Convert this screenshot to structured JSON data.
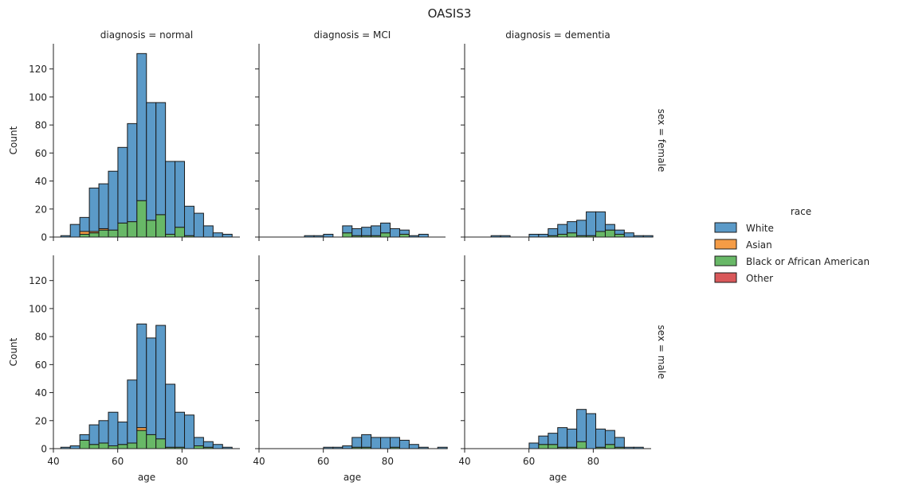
{
  "chart_data": {
    "type": "bar",
    "subtype": "stacked-histogram-facet-grid",
    "title": "OASIS3",
    "xlabel": "age",
    "ylabel": "Count",
    "xlim": [
      40,
      98
    ],
    "ylim": [
      0,
      138
    ],
    "xticks": [
      40,
      60,
      80
    ],
    "yticks": [
      0,
      20,
      40,
      60,
      80,
      100,
      120
    ],
    "bin_width": 2.96,
    "bin_start": 42.3,
    "bins": 19,
    "legend": {
      "title": "race",
      "placement": "right",
      "entries": [
        {
          "name": "White",
          "color": "#5b9ac8"
        },
        {
          "name": "Asian",
          "color": "#f59c46"
        },
        {
          "name": "Black or African American",
          "color": "#68b867"
        },
        {
          "name": "Other",
          "color": "#d9585a"
        }
      ]
    },
    "panels": [
      {
        "row_label": "sex = female",
        "col_label": "diagnosis = normal",
        "totals": [
          1,
          9,
          14,
          35,
          38,
          47,
          64,
          81,
          131,
          96,
          96,
          54,
          54,
          22,
          17,
          8,
          3,
          2,
          0
        ],
        "black": [
          0,
          0,
          2,
          3,
          5,
          5,
          10,
          11,
          26,
          12,
          16,
          2,
          7,
          1,
          0,
          0,
          0,
          0,
          0
        ],
        "asian": [
          0,
          0,
          2,
          1,
          1,
          0,
          0,
          0,
          0,
          0,
          0,
          0,
          0,
          0,
          0,
          0,
          0,
          0,
          0
        ],
        "other": [
          0,
          0,
          0,
          0,
          0,
          0,
          0,
          0,
          0,
          0,
          0,
          0,
          0,
          0,
          0,
          0,
          0,
          0,
          0
        ]
      },
      {
        "row_label": "sex = female",
        "col_label": "diagnosis = MCI",
        "totals": [
          0,
          0,
          0,
          0,
          1,
          1,
          2,
          0,
          8,
          6,
          7,
          8,
          10,
          6,
          5,
          1,
          2,
          0,
          0
        ],
        "black": [
          0,
          0,
          0,
          0,
          0,
          0,
          0,
          0,
          3,
          1,
          1,
          1,
          3,
          0,
          2,
          0,
          0,
          0,
          0
        ],
        "asian": [
          0,
          0,
          0,
          0,
          0,
          0,
          0,
          0,
          0,
          0,
          0,
          0,
          0,
          0,
          0,
          0,
          0,
          0,
          0
        ],
        "other": [
          0,
          0,
          0,
          0,
          0,
          0,
          0,
          0,
          0,
          0,
          0,
          0,
          0,
          0,
          0,
          0,
          0,
          0,
          0
        ]
      },
      {
        "row_label": "sex = female",
        "col_label": "diagnosis = dementia",
        "totals": [
          0,
          0,
          1,
          1,
          0,
          0,
          2,
          2,
          6,
          9,
          11,
          12,
          18,
          18,
          9,
          5,
          3,
          1,
          1
        ],
        "black": [
          0,
          0,
          0,
          0,
          0,
          0,
          0,
          0,
          1,
          2,
          3,
          1,
          1,
          4,
          5,
          2,
          0,
          0,
          0
        ],
        "asian": [
          0,
          0,
          0,
          0,
          0,
          0,
          0,
          0,
          0,
          0,
          0,
          0,
          0,
          0,
          0,
          0,
          0,
          0,
          0
        ],
        "other": [
          0,
          0,
          0,
          0,
          0,
          0,
          0,
          0,
          0,
          0,
          0,
          0,
          0,
          0,
          0,
          0,
          0,
          0,
          0
        ]
      },
      {
        "row_label": "sex = male",
        "col_label": "diagnosis = normal",
        "totals": [
          1,
          2,
          10,
          17,
          20,
          26,
          19,
          49,
          89,
          79,
          88,
          46,
          26,
          24,
          8,
          5,
          3,
          1,
          0
        ],
        "black": [
          0,
          0,
          6,
          3,
          4,
          2,
          3,
          4,
          13,
          10,
          7,
          1,
          1,
          0,
          2,
          1,
          0,
          0,
          0
        ],
        "asian": [
          0,
          0,
          0,
          0,
          0,
          0,
          0,
          0,
          2,
          0,
          0,
          0,
          0,
          0,
          0,
          0,
          0,
          0,
          0
        ],
        "other": [
          0,
          0,
          0,
          0,
          0,
          0,
          0,
          0,
          0,
          0,
          0,
          0,
          0,
          0,
          0,
          0,
          0,
          0,
          0
        ]
      },
      {
        "row_label": "sex = male",
        "col_label": "diagnosis = MCI",
        "totals": [
          0,
          0,
          0,
          0,
          0,
          0,
          1,
          1,
          2,
          8,
          10,
          8,
          8,
          8,
          6,
          3,
          1,
          0,
          1
        ],
        "black": [
          0,
          0,
          0,
          0,
          0,
          0,
          0,
          0,
          0,
          1,
          1,
          0,
          0,
          1,
          0,
          0,
          0,
          0,
          0
        ],
        "asian": [
          0,
          0,
          0,
          0,
          0,
          0,
          0,
          0,
          0,
          0,
          0,
          0,
          0,
          0,
          0,
          0,
          0,
          0,
          0
        ],
        "other": [
          0,
          0,
          0,
          0,
          0,
          0,
          0,
          0,
          0,
          0,
          0,
          0,
          0,
          0,
          0,
          0,
          0,
          0,
          0
        ]
      },
      {
        "row_label": "sex = male",
        "col_label": "diagnosis = dementia",
        "totals": [
          0,
          0,
          0,
          0,
          0,
          0,
          4,
          9,
          11,
          15,
          14,
          28,
          25,
          14,
          13,
          8,
          1,
          1,
          0
        ],
        "black": [
          0,
          0,
          0,
          0,
          0,
          0,
          0,
          3,
          3,
          1,
          1,
          5,
          0,
          1,
          3,
          1,
          0,
          0,
          0
        ],
        "asian": [
          0,
          0,
          0,
          0,
          0,
          0,
          0,
          0,
          0,
          0,
          0,
          0,
          0,
          0,
          0,
          0,
          0,
          0,
          0
        ],
        "other": [
          0,
          0,
          0,
          0,
          0,
          0,
          0,
          0,
          0,
          0,
          0,
          0,
          0,
          0,
          0,
          0,
          0,
          0,
          0
        ]
      }
    ]
  }
}
